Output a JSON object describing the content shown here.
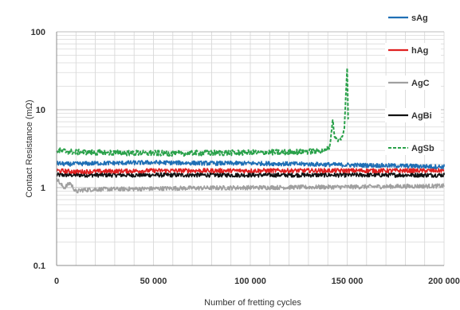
{
  "chart_data": {
    "type": "line",
    "title": "",
    "xlabel": "Number of fretting cycles",
    "ylabel": "Contact Resistance (mΩ)",
    "xlim": [
      0,
      200000
    ],
    "ylim": [
      0.1,
      100
    ],
    "yscale": "log",
    "grid": true,
    "legend_position": "right",
    "x_ticks": [
      0,
      50000,
      100000,
      150000,
      200000
    ],
    "x_tick_labels": [
      "0",
      "50 000",
      "100 000",
      "150 000",
      "200 000"
    ],
    "y_ticks": [
      0.1,
      1,
      10,
      100
    ],
    "y_tick_labels": [
      "0.1",
      "1",
      "10",
      "100"
    ],
    "series": [
      {
        "name": "sAg",
        "color": "#1f6fb5",
        "dash": "solid",
        "points": [
          [
            0,
            2.05
          ],
          [
            5000,
            2.0
          ],
          [
            20000,
            2.05
          ],
          [
            50000,
            2.1
          ],
          [
            80000,
            2.05
          ],
          [
            100000,
            2.05
          ],
          [
            130000,
            2.0
          ],
          [
            150000,
            1.95
          ],
          [
            180000,
            1.9
          ],
          [
            200000,
            1.85
          ]
        ]
      },
      {
        "name": "hAg",
        "color": "#e02020",
        "dash": "solid",
        "points": [
          [
            0,
            1.65
          ],
          [
            10000,
            1.6
          ],
          [
            50000,
            1.65
          ],
          [
            100000,
            1.65
          ],
          [
            150000,
            1.65
          ],
          [
            200000,
            1.65
          ]
        ]
      },
      {
        "name": "AgC",
        "color": "#a0a0a0",
        "dash": "solid",
        "points": [
          [
            0,
            1.35
          ],
          [
            2000,
            1.1
          ],
          [
            4000,
            1.0
          ],
          [
            7000,
            1.15
          ],
          [
            10000,
            0.88
          ],
          [
            13000,
            0.93
          ],
          [
            20000,
            0.95
          ],
          [
            40000,
            0.96
          ],
          [
            60000,
            0.98
          ],
          [
            100000,
            1.0
          ],
          [
            150000,
            1.02
          ],
          [
            200000,
            1.05
          ]
        ]
      },
      {
        "name": "AgBi",
        "color": "#111111",
        "dash": "solid",
        "points": [
          [
            0,
            1.45
          ],
          [
            50000,
            1.45
          ],
          [
            100000,
            1.45
          ],
          [
            150000,
            1.45
          ],
          [
            200000,
            1.45
          ]
        ]
      },
      {
        "name": "AgSb",
        "color": "#2aa14a",
        "dash": "dashed",
        "points": [
          [
            0,
            3.0
          ],
          [
            10000,
            2.85
          ],
          [
            30000,
            2.8
          ],
          [
            60000,
            2.75
          ],
          [
            90000,
            2.8
          ],
          [
            120000,
            2.85
          ],
          [
            138000,
            2.95
          ],
          [
            141000,
            3.3
          ],
          [
            142500,
            7.5
          ],
          [
            143500,
            4.5
          ],
          [
            145000,
            4.0
          ],
          [
            147000,
            4.3
          ],
          [
            148500,
            5.5
          ],
          [
            149500,
            20.0
          ],
          [
            150000,
            35.0
          ],
          [
            150500,
            8.0
          ]
        ]
      }
    ]
  }
}
